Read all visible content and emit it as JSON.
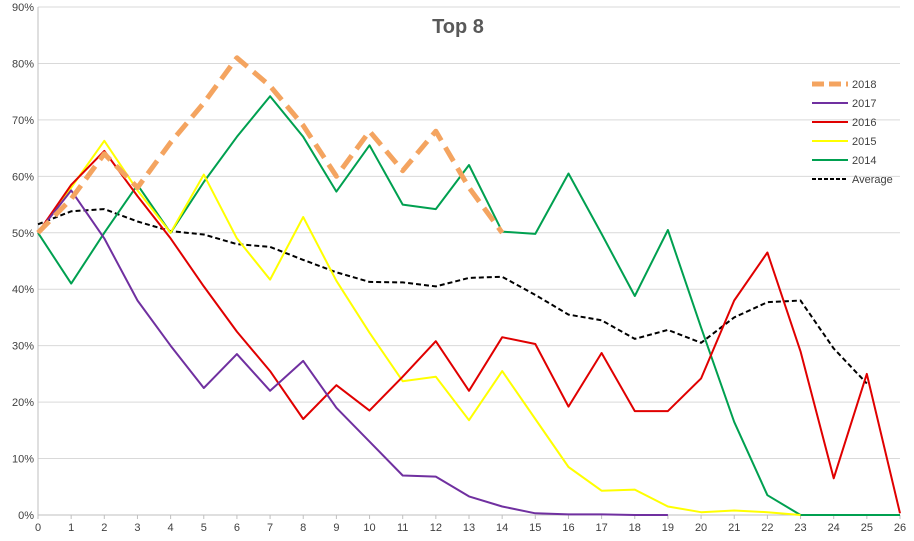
{
  "chart_data": {
    "type": "line",
    "title": "Top 8",
    "xlabel": "",
    "ylabel": "",
    "x": [
      0,
      1,
      2,
      3,
      4,
      5,
      6,
      7,
      8,
      9,
      10,
      11,
      12,
      13,
      14,
      15,
      16,
      17,
      18,
      19,
      20,
      21,
      22,
      23,
      24,
      25,
      26
    ],
    "xlim": [
      0,
      26
    ],
    "ylim": [
      0,
      90
    ],
    "y_ticks": [
      "0%",
      "10%",
      "20%",
      "30%",
      "40%",
      "50%",
      "60%",
      "70%",
      "80%",
      "90%"
    ],
    "x_ticks": [
      "0",
      "1",
      "2",
      "3",
      "4",
      "5",
      "6",
      "7",
      "8",
      "9",
      "10",
      "11",
      "12",
      "13",
      "14",
      "15",
      "16",
      "17",
      "18",
      "19",
      "20",
      "21",
      "22",
      "23",
      "24",
      "25",
      "26"
    ],
    "grid": true,
    "legend_position": "right",
    "series": [
      {
        "name": "2018",
        "color": "#f4a460",
        "dash": "dashed-thick",
        "values": [
          50,
          56,
          64,
          58,
          66,
          73,
          81,
          76,
          69,
          60,
          68,
          61,
          68,
          58,
          50,
          null,
          null,
          null,
          null,
          null,
          null,
          null,
          null,
          null,
          null,
          null,
          null
        ]
      },
      {
        "name": "2017",
        "color": "#7030a0",
        "dash": "solid",
        "values": [
          50,
          57.5,
          49,
          38,
          30,
          22.5,
          28.5,
          22,
          27.3,
          19,
          13,
          7,
          6.8,
          3.3,
          1.5,
          0.3,
          0.1,
          0.1,
          0,
          0,
          null,
          null,
          null,
          null,
          null,
          null,
          null
        ]
      },
      {
        "name": "2016",
        "color": "#e00000",
        "dash": "solid",
        "values": [
          50,
          58.5,
          64.5,
          56.5,
          49,
          40.5,
          32.5,
          25.5,
          17,
          23,
          18.5,
          24.5,
          30.8,
          22,
          31.5,
          30.3,
          19.2,
          28.7,
          18.4,
          18.4,
          24.2,
          38,
          46.5,
          29,
          6.5,
          25,
          0.3
        ]
      },
      {
        "name": "2015",
        "color": "#ffff00",
        "dash": "solid",
        "values": [
          50,
          58,
          66.3,
          57.5,
          50,
          60.3,
          49,
          41.7,
          52.8,
          41.5,
          32.3,
          23.7,
          24.5,
          16.8,
          25.5,
          17,
          8.5,
          4.3,
          4.5,
          1.5,
          0.5,
          0.8,
          0.5,
          0,
          null,
          null,
          null
        ]
      },
      {
        "name": "2014",
        "color": "#00a050",
        "dash": "solid",
        "values": [
          50,
          41,
          50,
          58.5,
          50,
          59,
          67,
          74.2,
          67,
          57.3,
          65.5,
          55,
          54.2,
          62,
          50.2,
          49.8,
          60.5,
          49.8,
          38.8,
          50.5,
          33.2,
          16.5,
          3.5,
          0,
          0,
          0,
          0
        ]
      },
      {
        "name": "Average",
        "color": "#000000",
        "dash": "dashed-thin",
        "values": [
          51.5,
          53.8,
          54.2,
          52,
          50.3,
          49.7,
          48,
          47.5,
          45.2,
          43,
          41.3,
          41.2,
          40.5,
          42,
          42.2,
          39,
          35.5,
          34.5,
          31.2,
          32.8,
          30.5,
          35,
          37.7,
          38,
          29.5,
          23.3,
          null
        ]
      }
    ]
  }
}
